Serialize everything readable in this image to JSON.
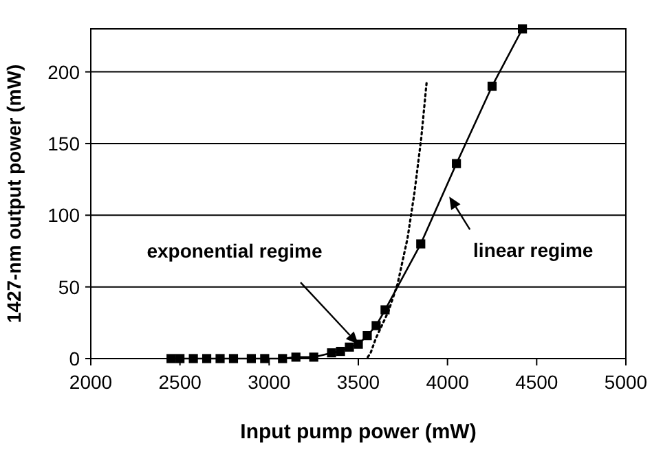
{
  "chart_data": {
    "type": "line",
    "xlabel": "Input pump power (mW)",
    "ylabel": "1427-nm output power (mW)",
    "xlim": [
      2000,
      5000
    ],
    "xticks": [
      2000,
      2500,
      3000,
      3500,
      4000,
      4500,
      5000
    ],
    "ylim": [
      0,
      230
    ],
    "yticks": [
      0,
      50,
      100,
      150,
      200
    ],
    "grid": "y",
    "series": [
      {
        "color": "#000000",
        "marker": "square",
        "line_style": "solid",
        "x": [
          2450,
          2500,
          2575,
          2650,
          2725,
          2800,
          2900,
          2975,
          3075,
          3150,
          3250,
          3350,
          3400,
          3450,
          3500,
          3550,
          3600,
          3650,
          3850,
          4050,
          4250,
          4420
        ],
        "values": [
          0,
          0,
          0,
          0,
          0,
          0,
          0,
          0,
          0,
          1,
          1,
          4,
          5,
          8,
          10,
          16,
          23,
          34,
          80,
          136,
          190,
          230
        ]
      },
      {
        "color": "#000000",
        "marker": "none",
        "line_style": "dotted",
        "x": [
          3553,
          3569,
          3598,
          3669,
          3720,
          3776,
          3815,
          3853,
          3884
        ],
        "values": [
          1,
          4,
          14,
          33,
          52,
          84,
          116,
          154,
          194
        ]
      }
    ],
    "annotations": [
      {
        "text": "exponential regime",
        "x": 3500,
        "y": 10
      },
      {
        "text": "linear regime",
        "x": 4010,
        "y": 113
      }
    ]
  }
}
